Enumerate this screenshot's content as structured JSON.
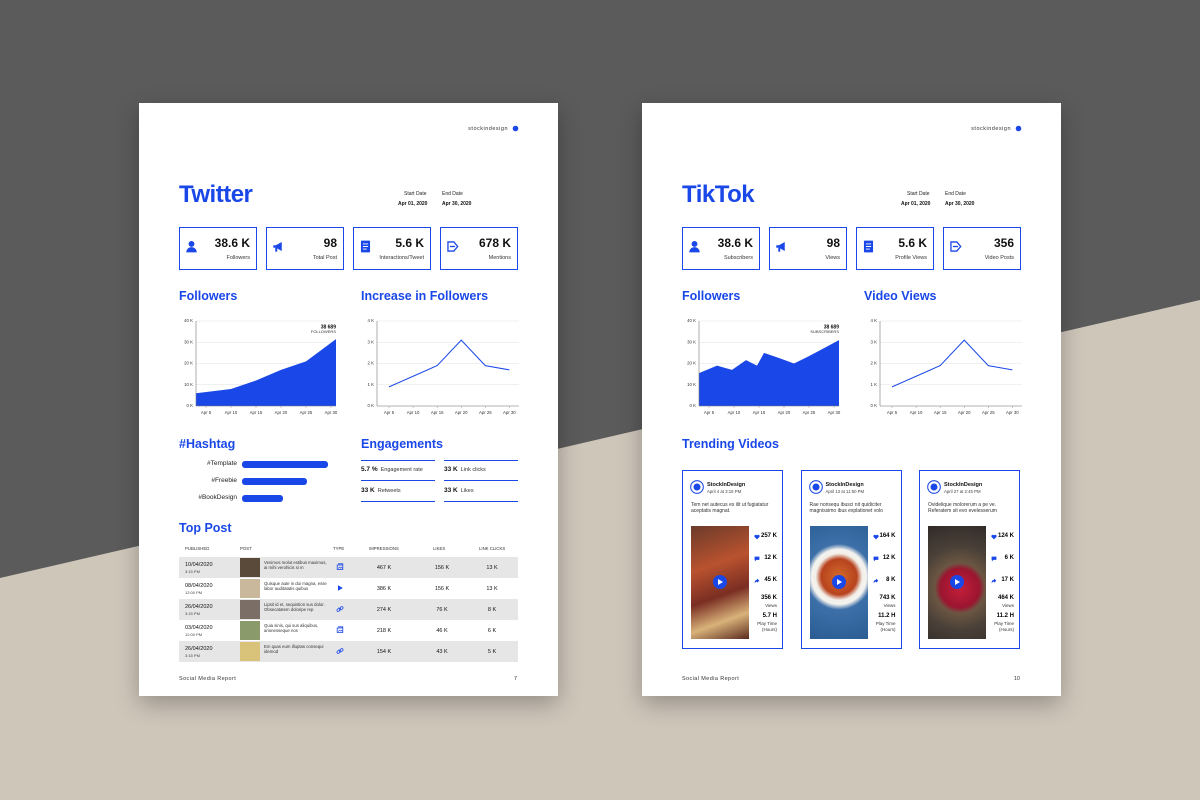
{
  "pages": [
    {
      "brand": "stockindesign",
      "title": "Twitter",
      "dates": {
        "start_label": "Start Date",
        "start": "Apr 01, 2020",
        "end_label": "End Date",
        "end": "Apr 30, 2020"
      },
      "stats": [
        {
          "value": "38.6 K",
          "label": "Followers"
        },
        {
          "value": "98",
          "label": "Total Post"
        },
        {
          "value": "5.6 K",
          "label": "Interactions/Tweet"
        },
        {
          "value": "678 K",
          "label": "Mentions"
        }
      ],
      "chart_left": {
        "type": "area",
        "title": "Followers",
        "color": "#1a47e8",
        "x": [
          3,
          10,
          15,
          20,
          25,
          31
        ],
        "values": [
          6,
          8,
          12,
          17,
          21,
          31.5
        ],
        "xlim": [
          3,
          31
        ],
        "xticks": [
          {
            "value": 5,
            "label": "Apr 5"
          },
          {
            "value": 10,
            "label": "Apr 10"
          },
          {
            "value": 15,
            "label": "Apr 15"
          },
          {
            "value": 20,
            "label": "Apr 20"
          },
          {
            "value": 25,
            "label": "Apr 25"
          },
          {
            "value": 30,
            "label": "Apr 30"
          }
        ],
        "ylim": [
          0,
          40
        ],
        "yticks": [
          {
            "value": 0,
            "label": "0 K"
          },
          {
            "value": 10,
            "label": "10 K"
          },
          {
            "value": 20,
            "label": "20 K"
          },
          {
            "value": 30,
            "label": "30 K"
          },
          {
            "value": 40,
            "label": "40 K"
          }
        ],
        "annotation": {
          "value": "38 689",
          "label": "FOLLOWERS"
        }
      },
      "chart_right": {
        "type": "line",
        "title": "Increase in Followers",
        "color": "#1a47e8",
        "x": [
          5,
          10,
          15,
          20,
          25,
          30
        ],
        "values": [
          0.9,
          1.4,
          1.9,
          3.1,
          1.9,
          1.7
        ],
        "xlim": [
          2.5,
          32
        ],
        "xticks": [
          {
            "value": 5,
            "label": "Apr 5"
          },
          {
            "value": 10,
            "label": "Apr 10"
          },
          {
            "value": 15,
            "label": "Apr 15"
          },
          {
            "value": 20,
            "label": "Apr 20"
          },
          {
            "value": 25,
            "label": "Apr 25"
          },
          {
            "value": 30,
            "label": "Apr 30"
          }
        ],
        "ylim": [
          0,
          4
        ],
        "yticks": [
          {
            "value": 0,
            "label": "0 K"
          },
          {
            "value": 1,
            "label": "1 K"
          },
          {
            "value": 2,
            "label": "2 K"
          },
          {
            "value": 3,
            "label": "3 K"
          },
          {
            "value": 4,
            "label": "4 K"
          }
        ]
      },
      "hashtags": {
        "type": "bar",
        "title": "#Hashtag",
        "color": "#1a47e8",
        "categories": [
          "#Template",
          "#Freebie",
          "#BookDesign"
        ],
        "values": [
          100,
          75,
          48
        ],
        "xlim": [
          0,
          100
        ]
      },
      "engagements": {
        "title": "Engagements",
        "items": [
          {
            "value": "5.7 %",
            "label": "Engagement rate"
          },
          {
            "value": "33 K",
            "label": "Link clicks"
          },
          {
            "value": "33 K",
            "label": "Retweets"
          },
          {
            "value": "33 K",
            "label": "Likes"
          }
        ]
      },
      "top_post": {
        "title": "Top Post",
        "columns": [
          "PUBLISHED",
          "POST",
          "TYPE",
          "IMPRESSIONS",
          "LIKES",
          "LINK CLICKS"
        ],
        "rows": [
          [
            "10/04/2020",
            "3:15 PM",
            "Venimos molut estibus maximus, ai mihi verohicis si m",
            "467 K",
            "156 K",
            "13 K"
          ],
          [
            "08/04/2020",
            "12:00 PM",
            "Quisque aute in dui magna, esse labor auditatatis quibus",
            "386 K",
            "156 K",
            "13 K"
          ],
          [
            "26/04/2020",
            "3:15 PM",
            "Lipsit id et, sequistion sus dolor. Obsecatatem doloripe rep",
            "274 K",
            "76 K",
            "8 K"
          ],
          [
            "03/04/2020",
            "12:00 PM",
            "Quia sinis, qui sus aliquibus, arionesseque nos",
            "218 K",
            "46 K",
            "6 K"
          ],
          [
            "26/04/2020",
            "3:15 PM",
            "Em quas eum illuptas consequi idemod",
            "154 K",
            "43 K",
            "5 K"
          ]
        ]
      },
      "footer": {
        "label": "Social Media Report",
        "page": "7"
      }
    },
    {
      "brand": "stockindesign",
      "title": "TikTok",
      "dates": {
        "start_label": "Start Date",
        "start": "Apr 01, 2020",
        "end_label": "End Date",
        "end": "Apr 30, 2020"
      },
      "stats": [
        {
          "value": "38.6 K",
          "label": "Subscribers"
        },
        {
          "value": "98",
          "label": "Views"
        },
        {
          "value": "5.6 K",
          "label": "Profile Views"
        },
        {
          "value": "356",
          "label": "Video Posts"
        }
      ],
      "chart_left": {
        "type": "area",
        "title": "Followers",
        "color": "#1a47e8",
        "x": [
          3,
          6.6,
          9.6,
          12.4,
          14.6,
          16,
          19,
          22,
          24.6,
          26.6,
          31
        ],
        "values": [
          15.5,
          19,
          17,
          21.6,
          19,
          25,
          22.6,
          20,
          23,
          25.5,
          31
        ],
        "xlim": [
          3,
          31
        ],
        "xticks": [
          {
            "value": 5,
            "label": "Apr 5"
          },
          {
            "value": 10,
            "label": "Apr 10"
          },
          {
            "value": 15,
            "label": "Apr 15"
          },
          {
            "value": 20,
            "label": "Apr 20"
          },
          {
            "value": 25,
            "label": "Apr 25"
          },
          {
            "value": 30,
            "label": "Apr 30"
          }
        ],
        "ylim": [
          0,
          40
        ],
        "yticks": [
          {
            "value": 0,
            "label": "0 K"
          },
          {
            "value": 10,
            "label": "10 K"
          },
          {
            "value": 20,
            "label": "20 K"
          },
          {
            "value": 30,
            "label": "30 K"
          },
          {
            "value": 40,
            "label": "40 K"
          }
        ],
        "annotation": {
          "value": "38 689",
          "label": "SUBSCRIBERS"
        }
      },
      "chart_right": {
        "type": "line",
        "title": "Video Views",
        "color": "#1a47e8",
        "x": [
          5,
          10,
          15,
          20,
          25,
          30
        ],
        "values": [
          0.9,
          1.4,
          1.9,
          3.1,
          1.9,
          1.7
        ],
        "xlim": [
          2.5,
          32
        ],
        "xticks": [
          {
            "value": 5,
            "label": "Apr 5"
          },
          {
            "value": 10,
            "label": "Apr 10"
          },
          {
            "value": 15,
            "label": "Apr 15"
          },
          {
            "value": 20,
            "label": "Apr 20"
          },
          {
            "value": 25,
            "label": "Apr 25"
          },
          {
            "value": 30,
            "label": "Apr 30"
          }
        ],
        "ylim": [
          0,
          4
        ],
        "yticks": [
          {
            "value": 0,
            "label": "0 K"
          },
          {
            "value": 1,
            "label": "1 K"
          },
          {
            "value": 2,
            "label": "2 K"
          },
          {
            "value": 3,
            "label": "3 K"
          },
          {
            "value": 4,
            "label": "4 K"
          }
        ]
      },
      "trending": {
        "title": "Trending Videos",
        "cards": [
          {
            "name": "StockInDesign",
            "date": "April 4 at 3:15 PM",
            "text": "Tem net autecus es ilit ut fugiatatur aceptatis magnat.",
            "likes": "257 K",
            "comments": "12 K",
            "shares": "45 K",
            "views": "356 K",
            "views_label": "Views",
            "play_time": "5.7 H",
            "play_time_label": "Play Time (Hours)"
          },
          {
            "name": "StockInDesign",
            "date": "April 13 at 11:50 PM",
            "text": "Rae nonsequ ibusci nit quidiciter magnissimo ibus explationet volo",
            "likes": "164 K",
            "comments": "12 K",
            "shares": "8 K",
            "views": "743 K",
            "views_label": "Views",
            "play_time": "11.2 H",
            "play_time_label": "Play Time (Hours)"
          },
          {
            "name": "StockInDesign",
            "date": "April 27 at 2:45 PM",
            "text": "Ovidelique molorerum a pe ve. Referatem sit evo evelesserum",
            "likes": "124 K",
            "comments": "6 K",
            "shares": "17 K",
            "views": "464 K",
            "views_label": "Views",
            "play_time": "11.2 H",
            "play_time_label": "Play Time (Hours)"
          }
        ]
      },
      "footer": {
        "label": "Social Media Report",
        "page": "10"
      }
    }
  ]
}
